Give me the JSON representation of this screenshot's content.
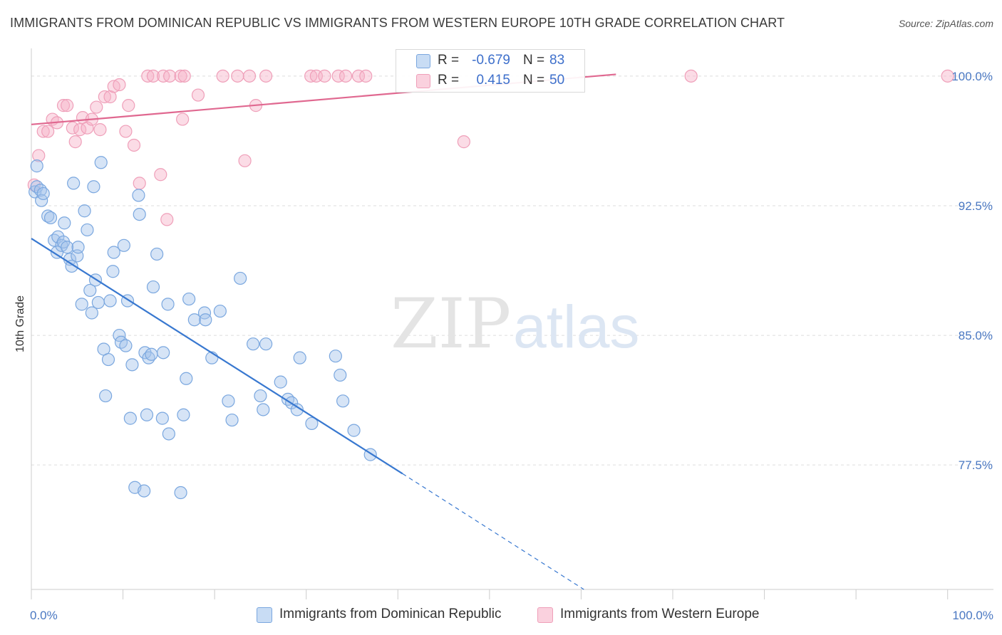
{
  "title": "IMMIGRANTS FROM DOMINICAN REPUBLIC VS IMMIGRANTS FROM WESTERN EUROPE 10TH GRADE CORRELATION CHART",
  "source": "Source: ZipAtlas.com",
  "watermark": {
    "zip": "ZIP",
    "atlas": "atlas"
  },
  "legend_top": {
    "rows": [
      {
        "r_label": "R =",
        "r_value": "-0.679",
        "n_label": "N =",
        "n_value": "83"
      },
      {
        "r_label": "R =",
        "r_value": "0.415",
        "n_label": "N =",
        "n_value": "50"
      }
    ]
  },
  "legend_bottom": {
    "items": [
      "Immigrants from Dominican Republic",
      "Immigrants from Western Europe"
    ]
  },
  "colors": {
    "blue_fill": "rgba(164,196,236,0.45)",
    "blue_stroke": "#7aa7df",
    "blue_line": "#3878d0",
    "pink_fill": "rgba(246,178,200,0.45)",
    "pink_stroke": "#ef9fb9",
    "pink_line": "#e06890",
    "grid": "#dedede",
    "tick_label": "#4a78c2"
  },
  "chart_data": {
    "type": "scatter",
    "title": "IMMIGRANTS FROM DOMINICAN REPUBLIC VS IMMIGRANTS FROM WESTERN EUROPE 10TH GRADE CORRELATION CHART",
    "xlabel": "",
    "ylabel": "10th Grade",
    "xlim": [
      0,
      105
    ],
    "ylim": [
      70.3,
      101.6
    ],
    "y_ticks": [
      77.5,
      85.0,
      92.5,
      100.0
    ],
    "y_tick_labels": [
      "77.5%",
      "85.0%",
      "92.5%",
      "100.0%"
    ],
    "x_tick_labels": [
      "0.0%",
      "100.0%"
    ],
    "x_tick_values": [
      0,
      100
    ],
    "x_minor_ticks": [
      0,
      10,
      20,
      30,
      40,
      50,
      60,
      70,
      80,
      90,
      100
    ],
    "series": [
      {
        "name": "Immigrants from Dominican Republic",
        "R": -0.679,
        "N": 83,
        "trend": {
          "x0": 0,
          "y0": 90.6,
          "x1": 40.5,
          "y1": 77.0,
          "dash_to_x": 60.3,
          "dash_to_y": 70.3
        },
        "points": [
          [
            0.4,
            93.3
          ],
          [
            0.6,
            93.6
          ],
          [
            0.6,
            94.8
          ],
          [
            1.0,
            93.4
          ],
          [
            1.1,
            92.8
          ],
          [
            1.3,
            93.2
          ],
          [
            1.8,
            91.9
          ],
          [
            2.1,
            91.8
          ],
          [
            2.5,
            90.5
          ],
          [
            2.8,
            89.8
          ],
          [
            2.9,
            90.7
          ],
          [
            3.3,
            90.2
          ],
          [
            3.5,
            90.4
          ],
          [
            3.6,
            91.5
          ],
          [
            3.9,
            90.1
          ],
          [
            4.2,
            89.4
          ],
          [
            4.4,
            89.0
          ],
          [
            4.6,
            93.8
          ],
          [
            5.0,
            89.6
          ],
          [
            5.1,
            90.1
          ],
          [
            5.5,
            86.8
          ],
          [
            5.8,
            92.2
          ],
          [
            6.1,
            91.1
          ],
          [
            6.4,
            87.6
          ],
          [
            6.6,
            86.3
          ],
          [
            6.8,
            93.6
          ],
          [
            7.0,
            88.2
          ],
          [
            7.3,
            86.9
          ],
          [
            7.6,
            95.0
          ],
          [
            7.9,
            84.2
          ],
          [
            8.1,
            81.5
          ],
          [
            8.4,
            83.6
          ],
          [
            8.6,
            87.0
          ],
          [
            8.9,
            88.7
          ],
          [
            9.0,
            89.8
          ],
          [
            9.6,
            85.0
          ],
          [
            9.8,
            84.6
          ],
          [
            10.1,
            90.2
          ],
          [
            10.3,
            84.4
          ],
          [
            10.5,
            87.0
          ],
          [
            10.8,
            80.2
          ],
          [
            11.0,
            83.3
          ],
          [
            11.3,
            76.2
          ],
          [
            11.7,
            93.1
          ],
          [
            11.8,
            92.0
          ],
          [
            12.3,
            76.0
          ],
          [
            12.4,
            84.0
          ],
          [
            12.6,
            80.4
          ],
          [
            12.8,
            83.7
          ],
          [
            13.1,
            83.9
          ],
          [
            13.3,
            87.8
          ],
          [
            13.7,
            89.7
          ],
          [
            14.3,
            80.2
          ],
          [
            14.4,
            84.0
          ],
          [
            14.9,
            86.8
          ],
          [
            15.0,
            79.3
          ],
          [
            16.3,
            75.9
          ],
          [
            16.6,
            80.4
          ],
          [
            16.9,
            82.5
          ],
          [
            17.2,
            87.1
          ],
          [
            17.8,
            85.9
          ],
          [
            18.9,
            86.3
          ],
          [
            19.0,
            85.9
          ],
          [
            19.7,
            83.7
          ],
          [
            20.6,
            86.4
          ],
          [
            21.5,
            81.2
          ],
          [
            21.9,
            80.1
          ],
          [
            22.8,
            88.3
          ],
          [
            24.2,
            84.5
          ],
          [
            25.0,
            81.5
          ],
          [
            25.3,
            80.7
          ],
          [
            25.6,
            84.5
          ],
          [
            27.2,
            82.3
          ],
          [
            28.0,
            81.3
          ],
          [
            28.4,
            81.1
          ],
          [
            29.0,
            80.7
          ],
          [
            29.3,
            83.7
          ],
          [
            30.6,
            79.9
          ],
          [
            33.2,
            83.8
          ],
          [
            33.7,
            82.7
          ],
          [
            34.0,
            81.2
          ],
          [
            35.2,
            79.5
          ],
          [
            37.0,
            78.1
          ]
        ]
      },
      {
        "name": "Immigrants from Western Europe",
        "R": 0.415,
        "N": 50,
        "trend": {
          "x0": 0,
          "y0": 97.2,
          "x1": 63.8,
          "y1": 100.1
        },
        "points": [
          [
            0.3,
            93.7
          ],
          [
            0.8,
            95.4
          ],
          [
            1.3,
            96.8
          ],
          [
            1.8,
            96.8
          ],
          [
            2.3,
            97.5
          ],
          [
            2.8,
            97.3
          ],
          [
            3.5,
            98.3
          ],
          [
            3.9,
            98.3
          ],
          [
            4.5,
            97.0
          ],
          [
            4.8,
            96.2
          ],
          [
            5.3,
            96.9
          ],
          [
            5.6,
            97.6
          ],
          [
            6.1,
            97.0
          ],
          [
            6.6,
            97.5
          ],
          [
            7.1,
            98.2
          ],
          [
            7.5,
            96.9
          ],
          [
            8.0,
            98.8
          ],
          [
            8.6,
            98.8
          ],
          [
            9.0,
            99.4
          ],
          [
            9.6,
            99.5
          ],
          [
            10.3,
            96.8
          ],
          [
            10.6,
            98.3
          ],
          [
            11.2,
            96.0
          ],
          [
            11.8,
            93.8
          ],
          [
            12.7,
            100.0
          ],
          [
            13.3,
            100.0
          ],
          [
            14.1,
            94.3
          ],
          [
            14.8,
            91.7
          ],
          [
            14.4,
            100.0
          ],
          [
            15.1,
            100.0
          ],
          [
            16.3,
            100.0
          ],
          [
            16.5,
            97.5
          ],
          [
            16.7,
            100.0
          ],
          [
            18.2,
            98.9
          ],
          [
            20.9,
            100.0
          ],
          [
            22.5,
            100.0
          ],
          [
            23.3,
            95.1
          ],
          [
            23.8,
            100.0
          ],
          [
            24.5,
            98.3
          ],
          [
            25.6,
            100.0
          ],
          [
            30.5,
            100.0
          ],
          [
            31.1,
            100.0
          ],
          [
            32.0,
            100.0
          ],
          [
            33.5,
            100.0
          ],
          [
            34.3,
            100.0
          ],
          [
            35.7,
            100.0
          ],
          [
            36.5,
            100.0
          ],
          [
            47.2,
            96.2
          ],
          [
            72.0,
            100.0
          ],
          [
            100.0,
            100.0
          ]
        ]
      }
    ]
  }
}
